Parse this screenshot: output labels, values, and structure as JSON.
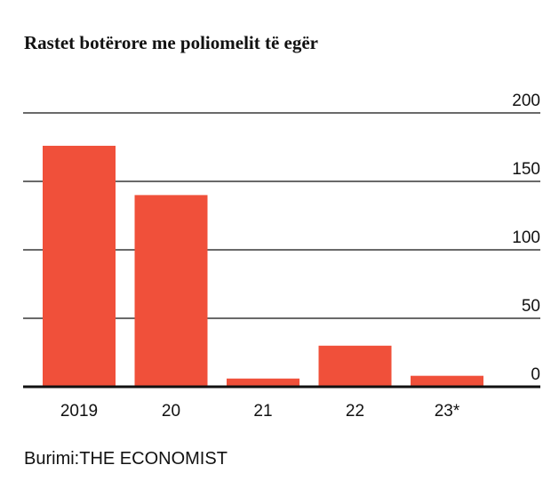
{
  "chart_data": {
    "type": "bar",
    "title": "Rastet botërore me poliomelit të egër",
    "categories": [
      "2019",
      "20",
      "21",
      "22",
      "23*"
    ],
    "values": [
      176,
      140,
      6,
      30,
      8
    ],
    "ylim": [
      0,
      200
    ],
    "yticks": [
      0,
      50,
      100,
      150,
      200
    ],
    "ytick_position": "right",
    "grid": true,
    "bar_color": "#f0503a",
    "xlabel": "",
    "ylabel": ""
  },
  "source": {
    "label": "Burimi:",
    "name": "THE ECONOMIST"
  }
}
